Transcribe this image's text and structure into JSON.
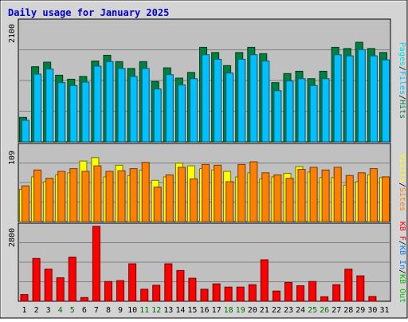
{
  "chart_data": {
    "type": "bar",
    "title": "Daily usage for January 2025",
    "categories": [
      "1",
      "2",
      "3",
      "4",
      "5",
      "6",
      "7",
      "8",
      "9",
      "10",
      "11",
      "12",
      "13",
      "14",
      "15",
      "16",
      "17",
      "18",
      "19",
      "20",
      "21",
      "22",
      "23",
      "24",
      "25",
      "26",
      "27",
      "28",
      "29",
      "30",
      "31"
    ],
    "weekend_days": [
      "4",
      "5",
      "11",
      "12",
      "18",
      "19",
      "25",
      "26"
    ],
    "colors": {
      "title": "#0000cc",
      "hits": "#008040",
      "files": "#00c0ff",
      "pages": "#00e0e0",
      "visits": "#ffff00",
      "sites": "#ff8000",
      "kb_in": "#0080ff",
      "kb_out": "#00c000",
      "kb_f": "#ff0000",
      "weekday_label": "#000000",
      "weekend_label": "#007000",
      "plot_bg": "#c0c0c0",
      "frame_bg": "#d4d4d4"
    },
    "panels": [
      {
        "id": "requests",
        "ymax_label": "2100",
        "ylim": [
          0,
          2100
        ],
        "legend": [
          {
            "text": "Pages",
            "color": "#00e0e0"
          },
          {
            "text": "/",
            "color": "#000000"
          },
          {
            "text": "Files",
            "color": "#00c0ff"
          },
          {
            "text": "/",
            "color": "#000000"
          },
          {
            "text": "Hits",
            "color": "#008040"
          }
        ],
        "series": [
          {
            "name": "Hits",
            "values": [
              430,
              1320,
              1400,
              1170,
              1100,
              1150,
              1420,
              1520,
              1410,
              1290,
              1410,
              1060,
              1300,
              1120,
              1220,
              1660,
              1570,
              1340,
              1570,
              1660,
              1550,
              1040,
              1200,
              1240,
              1110,
              1240,
              1660,
              1640,
              1750,
              1640,
              1570
            ]
          },
          {
            "name": "Files",
            "values": [
              380,
              1190,
              1280,
              1040,
              990,
              1050,
              1330,
              1410,
              1290,
              1150,
              1290,
              930,
              1180,
              1000,
              1110,
              1530,
              1450,
              1210,
              1450,
              1530,
              1420,
              900,
              1070,
              1110,
              990,
              1110,
              1530,
              1510,
              1620,
              1510,
              1440
            ]
          },
          {
            "name": "Pages",
            "values": [
              0,
              0,
              0,
              0,
              0,
              0,
              0,
              0,
              0,
              0,
              0,
              0,
              0,
              0,
              0,
              0,
              0,
              0,
              0,
              0,
              0,
              0,
              0,
              0,
              0,
              0,
              0,
              0,
              0,
              0,
              0
            ]
          }
        ]
      },
      {
        "id": "visits",
        "ymax_label": "109",
        "ylim": [
          0,
          109
        ],
        "legend": [
          {
            "text": "Visits",
            "color": "#ffff00"
          },
          {
            "text": "/",
            "color": "#000000"
          },
          {
            "text": "Sites",
            "color": "#ff8000"
          }
        ],
        "series": [
          {
            "name": "Visits",
            "values": [
              47,
              65,
              58,
              68,
              71,
              88,
              93,
              65,
              82,
              67,
              75,
              60,
              65,
              85,
              81,
              77,
              75,
              73,
              65,
              71,
              62,
              65,
              70,
              80,
              72,
              64,
              64,
              53,
              58,
              68,
              64
            ]
          },
          {
            "name": "Sites",
            "values": [
              52,
              75,
              63,
              73,
              77,
              73,
              81,
              73,
              74,
              77,
              86,
              50,
              68,
              79,
              62,
              83,
              82,
              58,
              83,
              87,
              71,
              68,
              63,
              76,
              79,
              75,
              79,
              67,
              71,
              77,
              65
            ]
          }
        ]
      },
      {
        "id": "kbytes",
        "ymax_label": "2800",
        "ylim": [
          0,
          2800
        ],
        "legend": [
          {
            "text": "KB F",
            "color": "#ff0000"
          },
          {
            "text": "/",
            "color": "#000000"
          },
          {
            "text": "KB In",
            "color": "#0080ff"
          },
          {
            "text": "/",
            "color": "#000000"
          },
          {
            "text": "KB Out",
            "color": "#00c000"
          }
        ],
        "series": [
          {
            "name": "KB F",
            "values": [
              250,
              1600,
              1200,
              880,
              1650,
              140,
              2800,
              740,
              770,
              1400,
              450,
              600,
              1400,
              1150,
              860,
              450,
              650,
              530,
              530,
              620,
              1550,
              380,
              700,
              580,
              740,
              170,
              620,
              1200,
              950,
              180,
              0
            ]
          },
          {
            "name": "KB In",
            "values": [
              0,
              0,
              0,
              0,
              0,
              0,
              0,
              0,
              0,
              0,
              0,
              0,
              0,
              0,
              0,
              0,
              0,
              0,
              0,
              0,
              0,
              0,
              0,
              0,
              0,
              0,
              0,
              0,
              0,
              0,
              0
            ]
          },
          {
            "name": "KB Out",
            "values": [
              0,
              0,
              0,
              0,
              0,
              0,
              0,
              0,
              0,
              0,
              0,
              0,
              0,
              0,
              0,
              0,
              0,
              0,
              0,
              0,
              0,
              0,
              0,
              0,
              0,
              0,
              0,
              0,
              0,
              0,
              0
            ]
          }
        ]
      }
    ]
  }
}
